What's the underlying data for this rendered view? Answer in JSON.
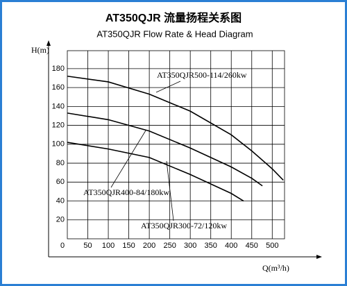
{
  "chart_data": {
    "type": "line",
    "title": "AT350QJR 流量扬程关系图",
    "subtitle": "AT350QJR Flow Rate & Head Diagram",
    "x_label": "Q(m³/h)",
    "y_label": "H(m)",
    "xlim": [
      0,
      530
    ],
    "ylim": [
      0,
      199
    ],
    "xticks": [
      0,
      50,
      100,
      150,
      200,
      250,
      300,
      350,
      400,
      450,
      500
    ],
    "yticks": [
      20,
      40,
      60,
      80,
      100,
      120,
      140,
      160,
      180
    ],
    "grid": true,
    "series": [
      {
        "name": "AT350QJR500-114/260kw",
        "color": "#000000",
        "x": [
          0,
          100,
          200,
          300,
          400,
          450,
          500,
          527
        ],
        "values": [
          172,
          166,
          153,
          135,
          110,
          93,
          74,
          62
        ]
      },
      {
        "name": "AT350QJR400-84/180kw",
        "color": "#000000",
        "x": [
          0,
          100,
          200,
          300,
          400,
          450,
          476
        ],
        "values": [
          133,
          126,
          114,
          96,
          76,
          64,
          56
        ]
      },
      {
        "name": "AT350QJR300-72/120kw",
        "color": "#000000",
        "x": [
          0,
          100,
          200,
          300,
          350,
          400,
          430
        ],
        "values": [
          102,
          95,
          86,
          68,
          58,
          48,
          40
        ]
      }
    ]
  }
}
